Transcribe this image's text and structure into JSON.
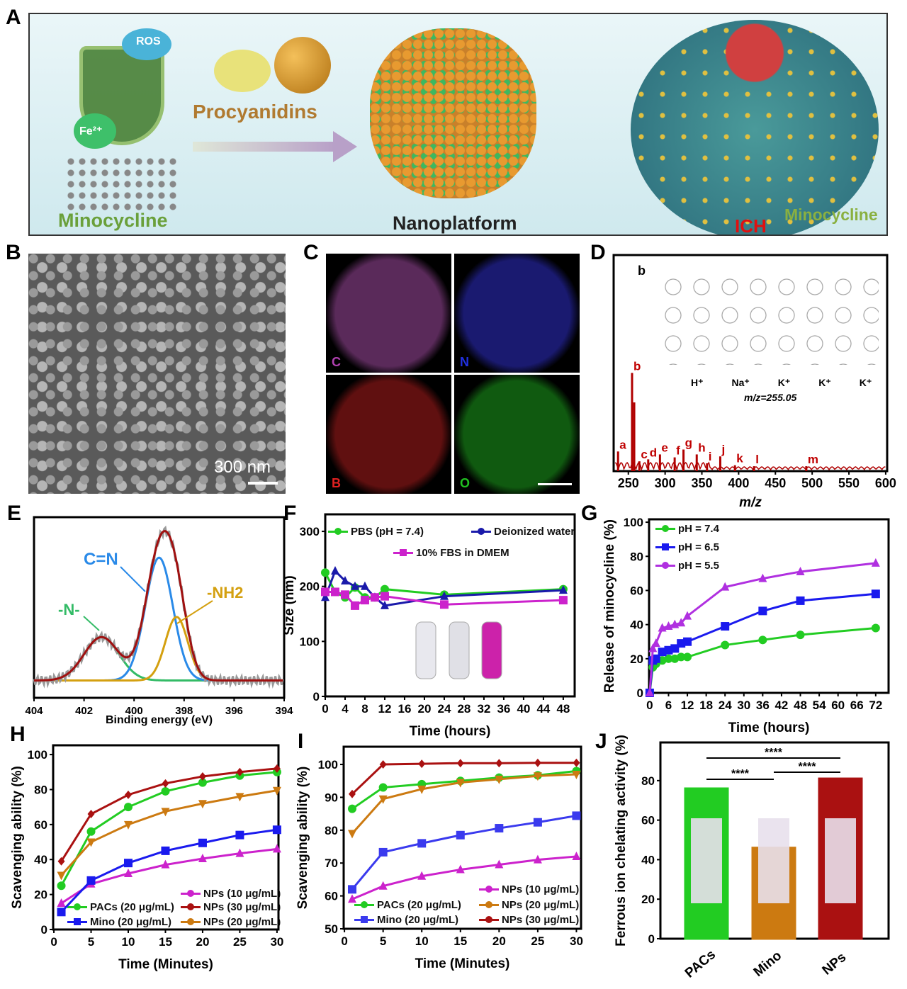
{
  "panels": {
    "A": "A",
    "B": "B",
    "C": "C",
    "D": "D",
    "E": "E",
    "F": "F",
    "G": "G",
    "H": "H",
    "I": "I",
    "J": "J"
  },
  "schematic": {
    "ros": "ROS",
    "fe": "Fe²⁺",
    "procyanidins": "Procyanidins",
    "minocycline": "Minocycline",
    "nanoplatform": "Nanoplatform",
    "ich": "ICH",
    "minocycline2": "Minocycline"
  },
  "sem": {
    "scale_bar": "300 nm"
  },
  "mapping": {
    "labels": [
      "C",
      "N",
      "B",
      "O"
    ],
    "colors": [
      "#b040b0",
      "#2030e0",
      "#e02020",
      "#20c020"
    ]
  },
  "structure": {
    "label": "b",
    "ions": [
      "H⁺",
      "Na⁺",
      "K⁺",
      "K⁺",
      "K⁺"
    ],
    "mz": "m/z=255.05"
  },
  "colors": {
    "green": "#22cc22",
    "blue": "#1a1aee",
    "magenta": "#cc22cc",
    "darkred": "#aa1111",
    "orange": "#cc7a11",
    "violet": "#b030e0"
  },
  "chart_data": [
    {
      "id": "D",
      "type": "bar",
      "title": "",
      "xlabel": "m/z",
      "ylabel": "",
      "xlim": [
        230,
        602
      ],
      "ylim": [
        0,
        2.2
      ],
      "xticks": [
        250,
        300,
        350,
        400,
        450,
        500,
        550,
        600
      ],
      "peaks": [
        {
          "label": "a",
          "mz": 236,
          "i": 0.2
        },
        {
          "label": "b",
          "mz": 255.05,
          "i": 1.0
        },
        {
          "label": "",
          "mz": 258,
          "i": 0.7
        },
        {
          "label": "c",
          "mz": 265,
          "i": 0.1
        },
        {
          "label": "d",
          "mz": 277,
          "i": 0.12
        },
        {
          "label": "e",
          "mz": 293,
          "i": 0.17
        },
        {
          "label": "f",
          "mz": 313,
          "i": 0.14
        },
        {
          "label": "g",
          "mz": 325,
          "i": 0.22
        },
        {
          "label": "h",
          "mz": 343,
          "i": 0.17
        },
        {
          "label": "i",
          "mz": 357,
          "i": 0.08
        },
        {
          "label": "j",
          "mz": 375,
          "i": 0.15
        },
        {
          "label": "k",
          "mz": 395,
          "i": 0.06
        },
        {
          "label": "l",
          "mz": 421,
          "i": 0.05
        },
        {
          "label": "m",
          "mz": 492,
          "i": 0.05
        }
      ]
    },
    {
      "id": "E",
      "type": "line",
      "title": "",
      "xlabel": "Binding energy (eV)",
      "ylabel": "",
      "xlim": [
        404,
        394
      ],
      "ylim": [
        0,
        1.25
      ],
      "xticks": [
        404,
        402,
        400,
        398,
        396,
        394
      ],
      "peaks": [
        {
          "name": "-N-",
          "center": 401.3,
          "amp": 0.3,
          "width": 0.7,
          "color": "#33bb66"
        },
        {
          "name": "C=N",
          "center": 399.0,
          "amp": 0.85,
          "width": 0.55,
          "color": "#2a8ae8"
        },
        {
          "name": "-NH2",
          "center": 398.3,
          "amp": 0.44,
          "width": 0.45,
          "color": "#d4a010"
        }
      ],
      "annotations": [
        "C=N",
        "-N-",
        "-NH2"
      ],
      "baseline": 0.12
    },
    {
      "id": "F",
      "type": "line",
      "xlabel": "Time (hours)",
      "ylabel": "Size (nm)",
      "xlim": [
        0,
        50.3
      ],
      "ylim": [
        0,
        331
      ],
      "xticks": [
        0,
        4,
        8,
        12,
        16,
        20,
        24,
        28,
        32,
        36,
        40,
        44,
        48
      ],
      "yticks": [
        0,
        100,
        200,
        300
      ],
      "x": [
        0,
        2,
        4,
        6,
        8,
        10,
        12,
        24,
        48
      ],
      "series": [
        {
          "name": "PBS (pH = 7.4)",
          "marker": "circle",
          "color": "#22cc22",
          "values": [
            225,
            190,
            180,
            198,
            180,
            180,
            195,
            185,
            195
          ]
        },
        {
          "name": "Deionized water",
          "marker": "triangle",
          "color": "#1a1aaa",
          "values": [
            180,
            228,
            210,
            200,
            200,
            180,
            165,
            182,
            193
          ]
        },
        {
          "name": "10% FBS in DMEM",
          "marker": "square",
          "color": "#cc22cc",
          "values": [
            190,
            190,
            185,
            165,
            175,
            180,
            182,
            167,
            175
          ]
        }
      ]
    },
    {
      "id": "G",
      "type": "line",
      "xlabel": "Time (hours)",
      "ylabel": "Release of minocycline (%)",
      "xlim": [
        -0.2,
        76.1
      ],
      "ylim": [
        0,
        101.7
      ],
      "xticks": [
        0,
        6,
        12,
        18,
        24,
        30,
        36,
        42,
        48,
        54,
        60,
        66,
        72
      ],
      "yticks": [
        0,
        20,
        40,
        60,
        80,
        100
      ],
      "x": [
        0,
        1,
        2,
        4,
        6,
        8,
        10,
        12,
        24,
        36,
        48,
        72
      ],
      "series": [
        {
          "name": "pH = 7.4",
          "marker": "circle",
          "color": "#22cc22",
          "values": [
            0,
            15,
            17,
            19,
            20,
            20,
            21,
            21,
            28,
            31,
            34,
            38
          ]
        },
        {
          "name": "pH = 6.5",
          "marker": "square",
          "color": "#1a1aee",
          "values": [
            0,
            19,
            20,
            24,
            25,
            26,
            29,
            30,
            39,
            48,
            54,
            58
          ]
        },
        {
          "name": "pH = 5.5",
          "marker": "triangle",
          "color": "#b030e0",
          "values": [
            0,
            26,
            29,
            38,
            39,
            40,
            41,
            45,
            62,
            67,
            71,
            76
          ]
        }
      ]
    },
    {
      "id": "H",
      "type": "line",
      "xlabel": "Time (Minutes)",
      "ylabel": "Scavenging ability (%)",
      "xlim": [
        -0.1,
        30.2
      ],
      "ylim": [
        0,
        105.3
      ],
      "xticks": [
        0,
        5,
        10,
        15,
        20,
        25,
        30
      ],
      "yticks": [
        0,
        20,
        40,
        60,
        80,
        100
      ],
      "x": [
        1,
        5,
        10,
        15,
        20,
        25,
        30
      ],
      "series": [
        {
          "name": "NPs (10 μg/mL)",
          "marker": "triangle",
          "color": "#cc22cc",
          "values": [
            15,
            26,
            32,
            37,
            40.5,
            43.5,
            46
          ]
        },
        {
          "name": "PACs (20 μg/mL)",
          "marker": "circle",
          "color": "#22cc22",
          "values": [
            25,
            56,
            70,
            79,
            84,
            88,
            90
          ]
        },
        {
          "name": "NPs (30 μg/mL)",
          "marker": "diamond",
          "color": "#aa1111",
          "values": [
            39,
            66,
            77,
            83.5,
            87.5,
            90,
            92
          ]
        },
        {
          "name": "Mino (20 μg/mL)",
          "marker": "square",
          "color": "#1a1aee",
          "values": [
            10,
            28,
            38,
            45,
            49.5,
            54,
            57
          ]
        },
        {
          "name": "NPs (20 μg/mL)",
          "marker": "down",
          "color": "#cc7a11",
          "values": [
            31,
            50,
            60,
            67.5,
            72,
            76,
            79.5
          ]
        }
      ]
    },
    {
      "id": "I",
      "type": "line",
      "xlabel": "Time (Minutes)",
      "ylabel": "Scavenging ability (%)",
      "xlim": [
        -0.1,
        30.6
      ],
      "ylim": [
        50,
        105.4
      ],
      "xticks": [
        0,
        5,
        10,
        15,
        20,
        25,
        30
      ],
      "yticks": [
        50,
        60,
        70,
        80,
        90,
        100
      ],
      "x": [
        1,
        5,
        10,
        15,
        20,
        25,
        30
      ],
      "series": [
        {
          "name": "NPs (10 μg/mL)",
          "marker": "triangle",
          "color": "#cc22cc",
          "values": [
            59,
            63,
            66,
            68,
            69.5,
            71,
            72
          ]
        },
        {
          "name": "PACs (20 μg/mL)",
          "marker": "circle",
          "color": "#22cc22",
          "values": [
            86.5,
            93,
            94,
            95,
            96,
            96.7,
            98
          ]
        },
        {
          "name": "NPs (20 μg/mL)",
          "marker": "down",
          "color": "#cc7a11",
          "values": [
            79,
            89.5,
            92.5,
            94.5,
            95.5,
            96.5,
            97
          ]
        },
        {
          "name": "Mino (20 μg/mL)",
          "marker": "square",
          "color": "#3a3aee",
          "values": [
            62,
            73.3,
            76,
            78.5,
            80.6,
            82.4,
            84.4
          ]
        },
        {
          "name": "NPs (30 μg/mL)",
          "marker": "diamond",
          "color": "#aa1111",
          "values": [
            91,
            100,
            100.2,
            100.4,
            100.4,
            100.5,
            100.5
          ]
        }
      ]
    },
    {
      "id": "J",
      "type": "bar",
      "xlabel": "",
      "ylabel": "Ferrous ion chelating activity (%)",
      "ylim": [
        0,
        99.3
      ],
      "yticks": [
        0,
        20,
        40,
        60,
        80
      ],
      "categories": [
        "PACs",
        "Mino",
        "NPs"
      ],
      "values": [
        76,
        46,
        81
      ],
      "colors": [
        "#22cc22",
        "#cc7a11",
        "#aa1111"
      ],
      "significance": [
        {
          "pair": [
            "PACs",
            "NPs"
          ],
          "label": "****"
        },
        {
          "pair": [
            "PACs",
            "Mino"
          ],
          "label": "****"
        },
        {
          "pair": [
            "Mino",
            "NPs"
          ],
          "label": "****"
        }
      ]
    }
  ]
}
